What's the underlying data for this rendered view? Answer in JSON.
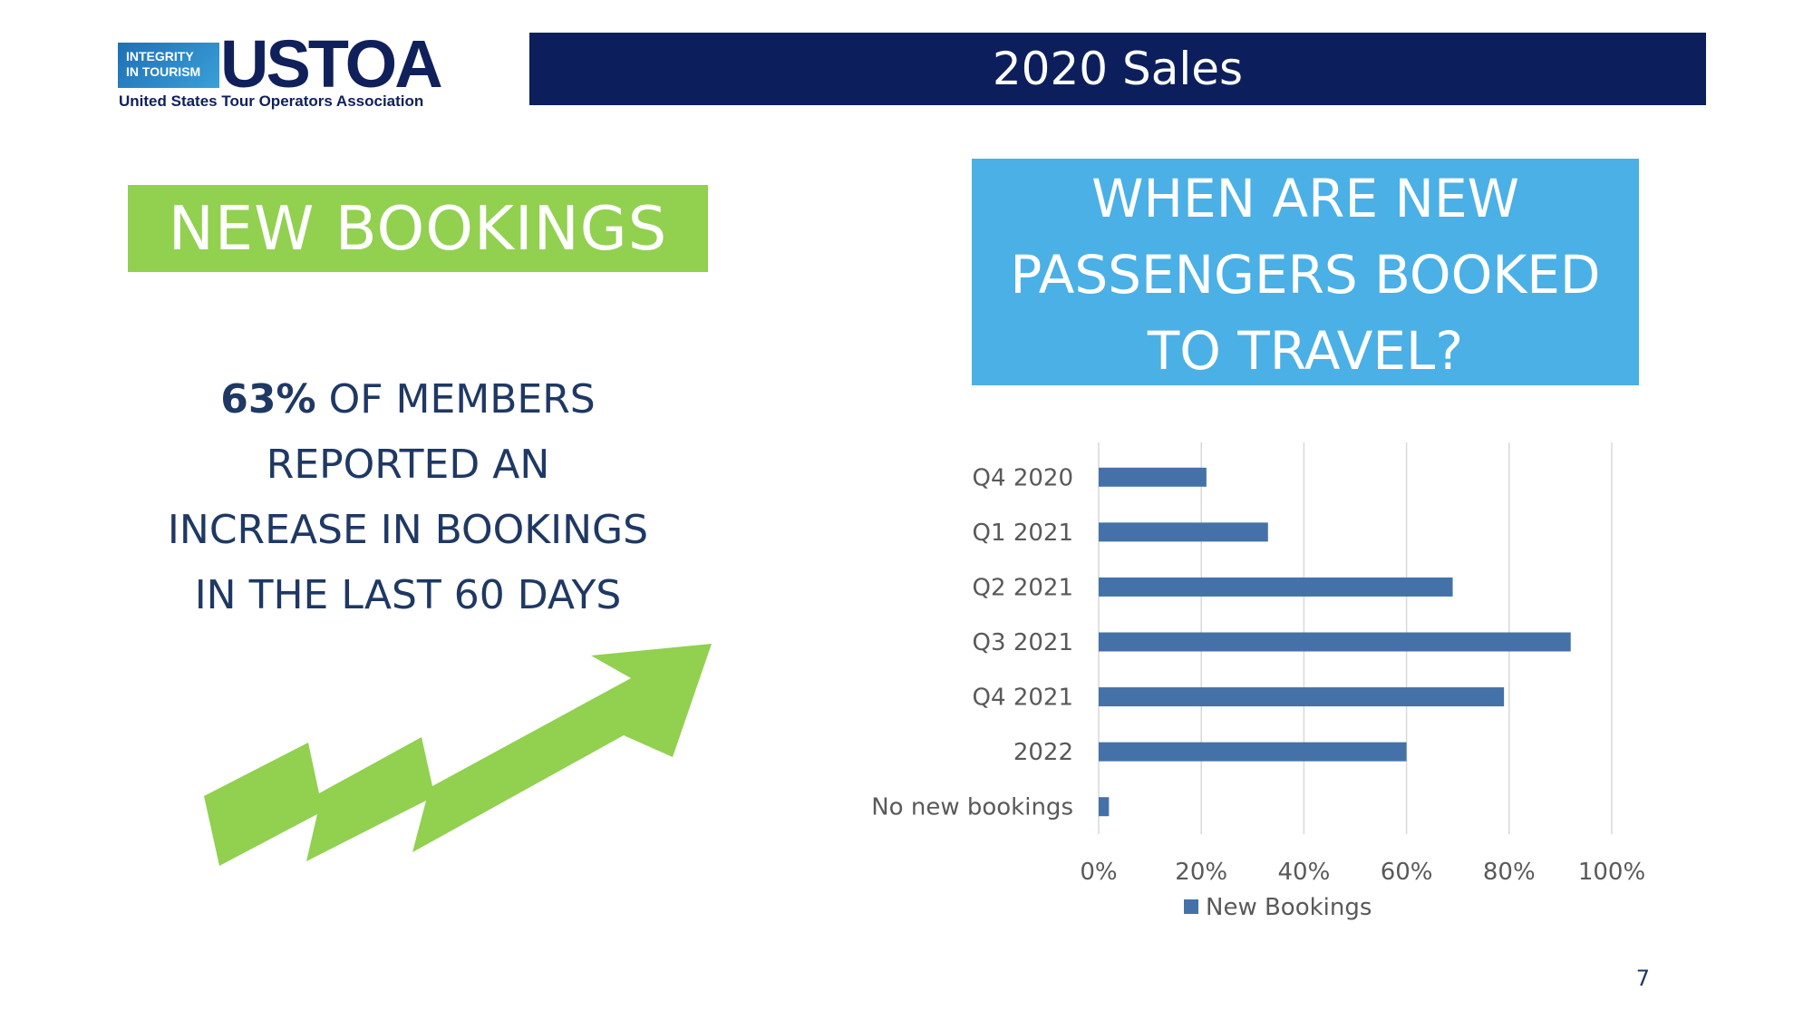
{
  "logo": {
    "badge_line1": "INTEGRITY",
    "badge_line2": "IN TOURISM",
    "wordmark": "USTOA",
    "subtitle": "United States Tour Operators Association"
  },
  "header": {
    "title": "2020 Sales"
  },
  "left_panel": {
    "heading": "NEW BOOKINGS",
    "stat_percent": "63%",
    "stat_line1_rest": " OF MEMBERS",
    "stat_line2": "REPORTED AN",
    "stat_line3": "INCREASE IN BOOKINGS",
    "stat_line4": "IN THE LAST 60 DAYS",
    "arrow_icon": "trend-up-arrow-icon"
  },
  "right_panel": {
    "heading_line1": "WHEN ARE NEW",
    "heading_line2": "PASSENGERS BOOKED",
    "heading_line3": "TO TRAVEL?"
  },
  "chart_data": {
    "type": "bar",
    "orientation": "horizontal",
    "categories": [
      "Q4 2020",
      "Q1 2021",
      "Q2 2021",
      "Q3 2021",
      "Q4 2021",
      "2022",
      "No new bookings"
    ],
    "series": [
      {
        "name": "New Bookings",
        "values": [
          21,
          33,
          69,
          92,
          79,
          60,
          2
        ],
        "color": "#4472a8"
      }
    ],
    "xlim": [
      0,
      100
    ],
    "x_ticks": [
      "0%",
      "20%",
      "40%",
      "60%",
      "80%",
      "100%"
    ],
    "x_tick_values": [
      0,
      20,
      40,
      60,
      80,
      100
    ],
    "grid": true,
    "legend_position": "bottom"
  },
  "colors": {
    "navy": "#0c1f5c",
    "green": "#92d050",
    "sky_blue": "#4ab0e6",
    "text_dark": "#1f3864",
    "axis_text": "#595959",
    "gridline": "#d9d9d9"
  },
  "footer": {
    "page_number": "7"
  }
}
